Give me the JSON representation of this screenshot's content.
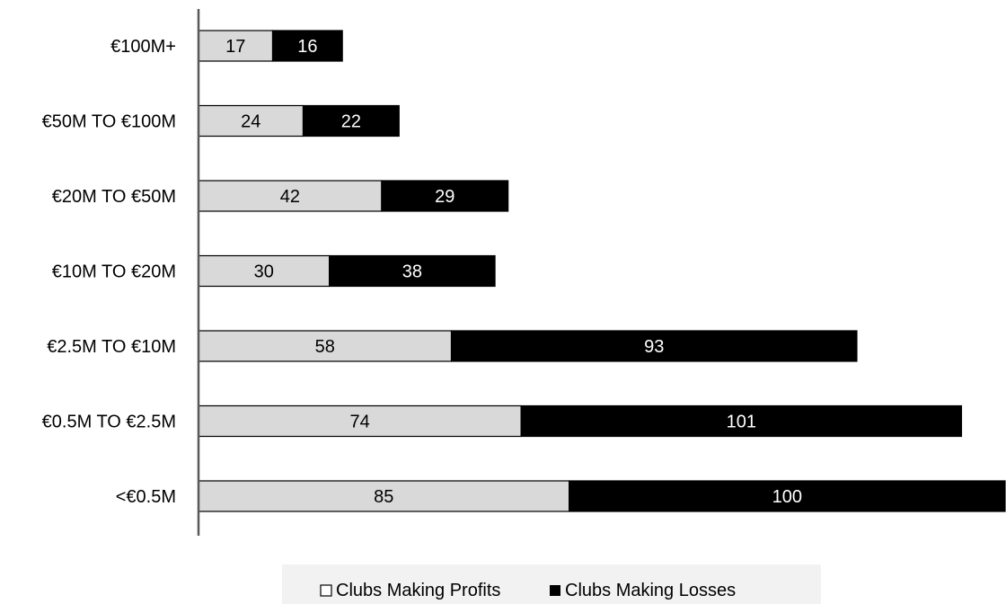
{
  "chart_data": {
    "type": "bar",
    "orientation": "horizontal",
    "stacked": true,
    "categories": [
      "€100M+",
      "€50M TO €100M",
      "€20M TO €50M",
      "€10M TO €20M",
      "€2.5M TO €10M",
      "€0.5M TO €2.5M",
      "<€0.5M"
    ],
    "series": [
      {
        "name": "Clubs Making Profits",
        "color": "#d9d9d9",
        "label_color": "#000000",
        "values": [
          17,
          24,
          42,
          30,
          58,
          74,
          85
        ]
      },
      {
        "name": "Clubs Making Losses",
        "color": "#000000",
        "label_color": "#ffffff",
        "values": [
          16,
          22,
          29,
          38,
          93,
          101,
          100
        ]
      }
    ],
    "xlim": [
      0,
      185
    ],
    "grid": false,
    "legend_position": "bottom-center"
  }
}
